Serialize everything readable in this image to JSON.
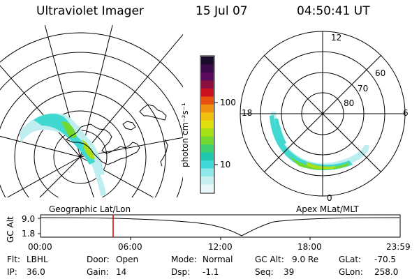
{
  "header": {
    "instrument": "Ultraviolet Imager",
    "date": "15 Jul 07",
    "time": "04:50:41 UT"
  },
  "geo_map": {
    "caption": "Geographic Lat/Lon"
  },
  "polar_plot": {
    "caption": "Apex MLat/MLT",
    "mlt_labels": [
      "12",
      "18",
      "6",
      "0"
    ],
    "mlat_labels": [
      "60",
      "70",
      "80"
    ]
  },
  "colorbar": {
    "unit_label": "photon cm⁻²s⁻¹",
    "ticks": [
      "100",
      "10"
    ],
    "colors": [
      "#1a0a2a",
      "#3a0a4a",
      "#5a0a5a",
      "#8a1040",
      "#c81020",
      "#e85010",
      "#f09010",
      "#f0c010",
      "#e0e010",
      "#a8e018",
      "#70d830",
      "#40d070",
      "#20c8b0",
      "#40d8d8",
      "#90e8e8",
      "#c8f0f0",
      "#e8f8f8"
    ]
  },
  "altitude_plot": {
    "ylabel": "GC Alt",
    "yticks": [
      "9.0",
      "1.8"
    ],
    "xticks": [
      "00:00",
      "06:00",
      "12:00",
      "18:00",
      "23:59"
    ],
    "marker_color": "#cc0000"
  },
  "info": {
    "flt_label": "Flt:",
    "flt_value": "LBHL",
    "door_label": "Door:",
    "door_value": "Open",
    "mode_label": "Mode:",
    "mode_value": "Normal",
    "gcalt_label": "GC Alt:",
    "gcalt_value": "9.0 Re",
    "glat_label": "GLat:",
    "glat_value": "-70.5",
    "ip_label": "IP:",
    "ip_value": "36.0",
    "gain_label": "Gain:",
    "gain_value": "14",
    "dsp_label": "Dsp:",
    "dsp_value": "-1.1",
    "seq_label": "Seq:",
    "seq_value": "39",
    "glon_label": "GLon:",
    "glon_value": "258.0"
  }
}
